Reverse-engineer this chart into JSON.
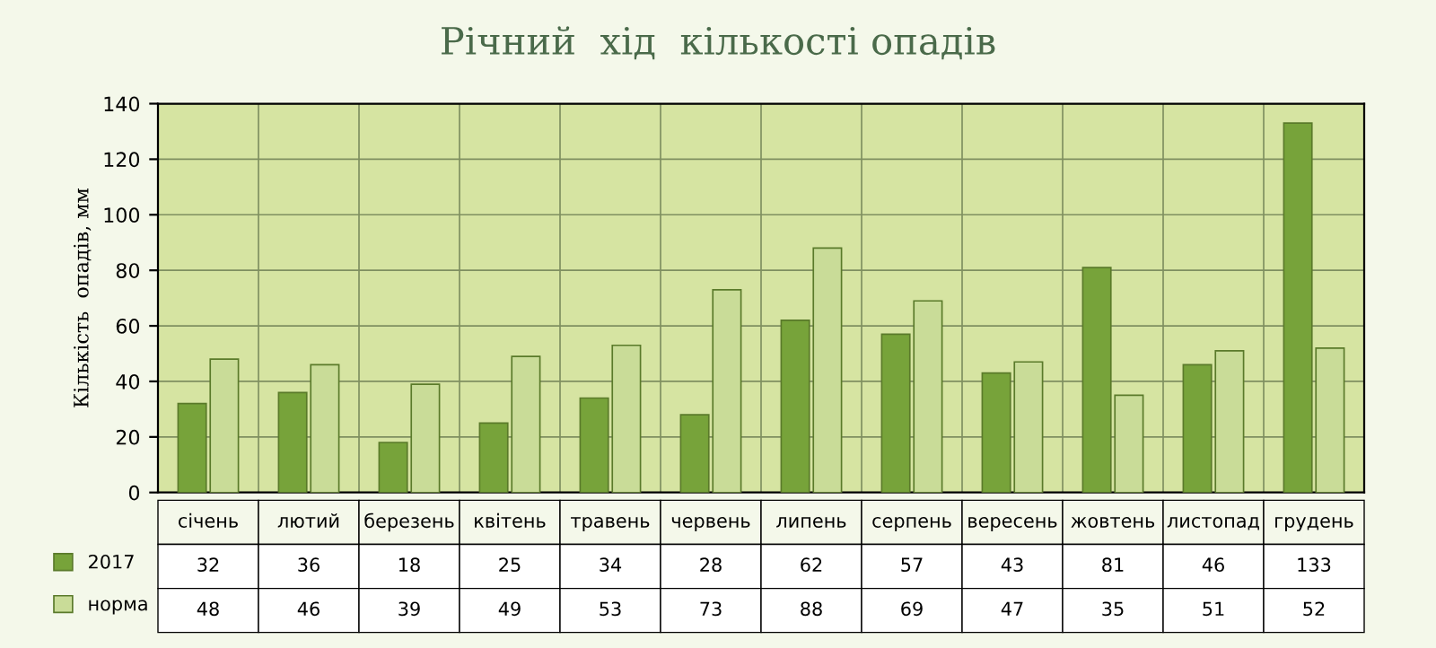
{
  "chart_data": {
    "type": "bar",
    "title": "Річний  хід  кількості опадів",
    "ylabel": "Кількість  опадів, мм",
    "categories": [
      "січень",
      "лютий",
      "березень",
      "квітень",
      "травень",
      "червень",
      "липень",
      "серпень",
      "вересень",
      "жовтень",
      "листопад",
      "грудень"
    ],
    "series": [
      {
        "name": "2017",
        "color": "#77a33a",
        "values": [
          32,
          36,
          18,
          25,
          34,
          28,
          62,
          57,
          43,
          81,
          46,
          133
        ]
      },
      {
        "name": "норма",
        "color": "#c9dc98",
        "values": [
          48,
          46,
          39,
          49,
          53,
          73,
          88,
          69,
          47,
          35,
          51,
          52
        ]
      }
    ],
    "ylim": [
      0,
      140
    ],
    "yticks": [
      0,
      20,
      40,
      60,
      80,
      100,
      120,
      140
    ],
    "grid": true,
    "data_labels": true,
    "legend": "bottom left"
  }
}
